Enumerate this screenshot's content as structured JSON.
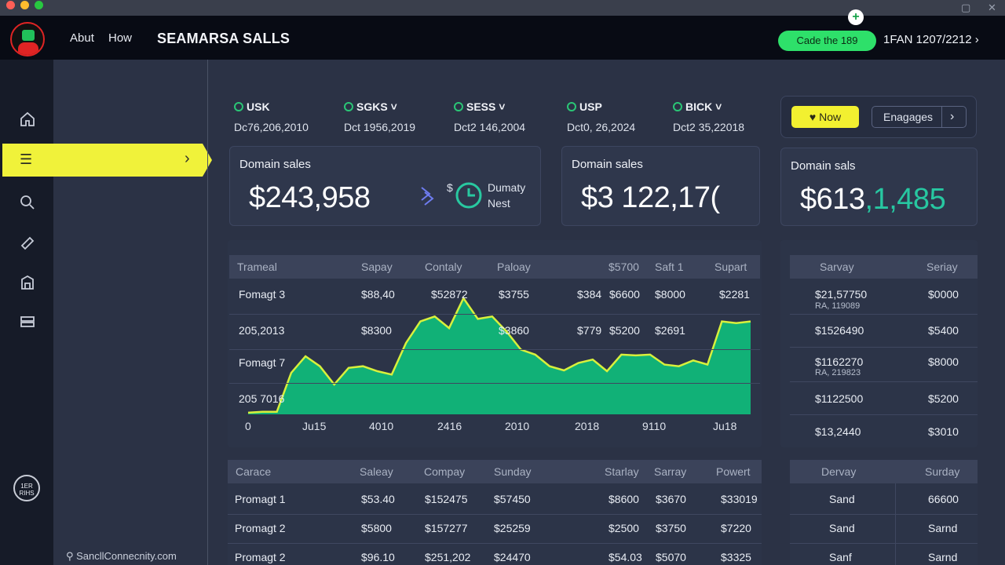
{
  "app": {
    "brand": "SEAMARSA SALLS",
    "nav": [
      "Abut",
      "How"
    ],
    "cta_label": "Cade the 189",
    "date_nav": "1FAN 1207/2212 ›",
    "footer_link": "SancllConnecnity.com",
    "support_badge": "1ER\nRIHS"
  },
  "tickers": [
    {
      "symbol": "USK",
      "date": "Dc76,206,2010"
    },
    {
      "symbol": "SGKS ˅",
      "date": "Dct 1956,2019"
    },
    {
      "symbol": "SESS ˅",
      "date": "Dct2 146,2004"
    },
    {
      "symbol": "USP",
      "date": "Dct0, 26,2024"
    },
    {
      "symbol": "BICK ˅",
      "date": "Dct2 35,22018"
    }
  ],
  "buttons": {
    "now": "Now",
    "engages": "Enagages"
  },
  "cards": [
    {
      "title": "Domain sales",
      "value": "$243,958",
      "extra_symbol": "$",
      "extra_text1": "Dumaty",
      "extra_text2": "Nest"
    },
    {
      "title": "Domain sales",
      "value": "$3 122,17("
    },
    {
      "title": "Domain sals",
      "value_white": "$613",
      "value_teal": ",1,485"
    }
  ],
  "main_table": {
    "headers": [
      "Trameal",
      "Sapay",
      "Contaly",
      "Paloay",
      "$5700",
      "Saft 1",
      "Supart"
    ],
    "rows": [
      {
        "label": "Fomagt 3",
        "cells": [
          "$88,40",
          "$52872",
          "$3755",
          "$384",
          "$6600",
          "$8000",
          "$2281"
        ]
      },
      {
        "label": "205,2013",
        "cells": [
          "$8300",
          "",
          "$3860",
          "$779",
          "$5200",
          "$2691",
          ""
        ]
      },
      {
        "label": "Fomagt 7",
        "cells": []
      },
      {
        "label": "205 7016",
        "cells": []
      }
    ]
  },
  "chart_data": {
    "type": "area",
    "x_ticks": [
      "0",
      "Ju15",
      "4010",
      "2416",
      "2010",
      "2018",
      "9110",
      "Ju18"
    ],
    "values": [
      2,
      3,
      3,
      50,
      70,
      58,
      36,
      56,
      58,
      52,
      48,
      86,
      112,
      118,
      104,
      140,
      115,
      118,
      100,
      78,
      72,
      58,
      53,
      62,
      66,
      52,
      72,
      71,
      72,
      60,
      58,
      65,
      60,
      112,
      110,
      112
    ],
    "series_color": "#10b87a",
    "line_color": "#d8f03c"
  },
  "right_table": {
    "headers": [
      "Sarvay",
      "Seriay"
    ],
    "rows": [
      {
        "a": "$21,57750",
        "sub": "RA, 119089",
        "b": "$0000"
      },
      {
        "a": "$1526490",
        "sub": "",
        "b": "$5400"
      },
      {
        "a": "$1162270",
        "sub": "RA, 219823",
        "b": "$8000"
      },
      {
        "a": "$1122500",
        "sub": "",
        "b": "$5200"
      },
      {
        "a": "$13,2440",
        "sub": "",
        "b": "$3010"
      }
    ]
  },
  "bottom_table": {
    "headers": [
      "Carace",
      "Saleay",
      "Compay",
      "Sunday",
      "Starlay",
      "Sarray",
      "Powert"
    ],
    "rows": [
      [
        "Promagt 1",
        "$53.40",
        "$152475",
        "$57450",
        "$8600",
        "$3670",
        "$33019"
      ],
      [
        "Promagt 2",
        "$5800",
        "$157277",
        "$25259",
        "$2500",
        "$3750",
        "$7220"
      ],
      [
        "Promagt 2",
        "$96.10",
        "$251,202",
        "$24470",
        "$54.03",
        "$5070",
        "$3325"
      ]
    ]
  },
  "bottom_right_table": {
    "headers": [
      "Dervay",
      "Surday"
    ],
    "rows": [
      [
        "Sand",
        "66600"
      ],
      [
        "Sand",
        "Sarnd"
      ],
      [
        "Sanf",
        "Sarnd"
      ]
    ]
  }
}
